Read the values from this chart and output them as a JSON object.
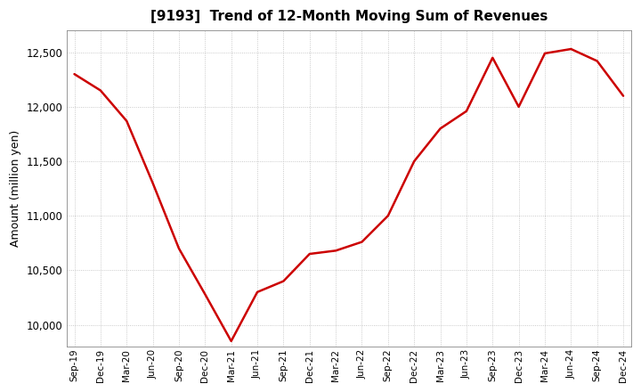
{
  "title": "[9193]  Trend of 12-Month Moving Sum of Revenues",
  "ylabel": "Amount (million yen)",
  "line_color": "#cc0000",
  "background_color": "#ffffff",
  "plot_bg_color": "#ffffff",
  "grid_color": "#bbbbbb",
  "ylim": [
    9800,
    12700
  ],
  "yticks": [
    10000,
    10500,
    11000,
    11500,
    12000,
    12500
  ],
  "x_labels": [
    "Sep-19",
    "Dec-19",
    "Mar-20",
    "Jun-20",
    "Sep-20",
    "Dec-20",
    "Mar-21",
    "Jun-21",
    "Sep-21",
    "Dec-21",
    "Mar-22",
    "Jun-22",
    "Sep-22",
    "Dec-22",
    "Mar-23",
    "Jun-23",
    "Sep-23",
    "Dec-23",
    "Mar-24",
    "Jun-24",
    "Sep-24",
    "Dec-24"
  ],
  "values": [
    12300,
    12150,
    11870,
    11300,
    10700,
    10280,
    9850,
    10300,
    10400,
    10650,
    10680,
    10760,
    11000,
    11500,
    11800,
    11960,
    12450,
    12000,
    12490,
    12530,
    12420,
    12100
  ]
}
